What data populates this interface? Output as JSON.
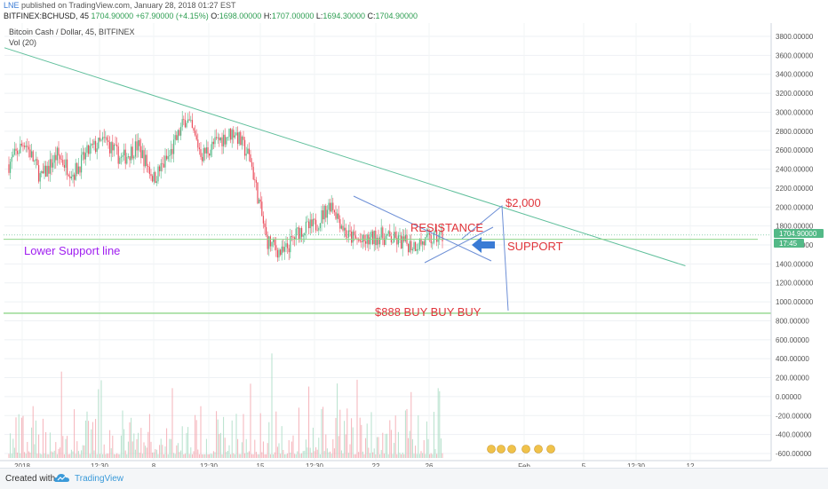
{
  "header": {
    "user": "LNE",
    "published_text": "published on TradingView.com, January 28, 2018 01:27 EST",
    "symbol_line": "BITFINEX:BCHUSD, 45",
    "last": "1704.90000",
    "change": "+67.90000 (+4.15%)",
    "o_label": "O:",
    "o": "1698.00000",
    "h_label": "H:",
    "h": "1707.00000",
    "l_label": "L:",
    "l": "1694.30000",
    "c_label": "C:",
    "c": "1704.90000"
  },
  "legend": {
    "title": "Bitcoin Cash / Dollar, 45, BITFINEX",
    "volume": "Vol (20)"
  },
  "annotations": {
    "resistance": "RESISTANCE",
    "support": "SUPPORT",
    "two_thousand": "$2,000",
    "lower_support": "Lower Support line",
    "buy": "$888 BUY BUY BUY"
  },
  "price_tag": {
    "value": "1704.90000",
    "time": "17:45"
  },
  "footer": {
    "created_with": "Created with",
    "brand": "TradingView"
  },
  "colors": {
    "up": "#53b987",
    "down": "#eb4d5c",
    "trend": "#5fbf9b",
    "wedge": "#6d8fd6",
    "support": "#8fd68a",
    "text_red": "#e0353b",
    "lower_support": "#a020f0",
    "arrow": "#3a7bd5"
  },
  "chart_data": {
    "type": "candlestick",
    "y_axis": {
      "ticks": [
        "3800.00000",
        "3600.00000",
        "3400.00000",
        "3200.00000",
        "3000.00000",
        "2800.00000",
        "2600.00000",
        "2400.00000",
        "2200.00000",
        "2000.00000",
        "1800.00000",
        "1600.00000",
        "1400.00000",
        "1200.00000",
        "1000.00000",
        "800.00000",
        "600.00000",
        "400.00000",
        "200.00000",
        "0.00000",
        "-200.00000",
        "-400.00000",
        "-600.00000"
      ],
      "range": [
        -630,
        3900
      ]
    },
    "x_axis": {
      "ticks": [
        "2018",
        "12:30",
        "8",
        "12:30",
        "15",
        "12:30",
        "22",
        "26",
        "Feb",
        "5",
        "12:30",
        "12"
      ]
    },
    "price_path": [
      [
        "2018-01-01",
        2450
      ],
      [
        "2018-01-02",
        2700
      ],
      [
        "2018-01-03",
        2300
      ],
      [
        "2018-01-04",
        2550
      ],
      [
        "2018-01-05",
        2350
      ],
      [
        "2018-01-06",
        2600
      ],
      [
        "2018-01-07",
        2700
      ],
      [
        "2018-01-08",
        2500
      ],
      [
        "2018-01-09",
        2650
      ],
      [
        "2018-01-10",
        2300
      ],
      [
        "2018-01-11",
        2550
      ],
      [
        "2018-01-12",
        2950
      ],
      [
        "2018-01-13",
        2550
      ],
      [
        "2018-01-14",
        2700
      ],
      [
        "2018-01-15",
        2800
      ],
      [
        "2018-01-16",
        2500
      ],
      [
        "2018-01-17",
        1650
      ],
      [
        "2018-01-18",
        1500
      ],
      [
        "2018-01-19",
        1750
      ],
      [
        "2018-01-20",
        1800
      ],
      [
        "2018-01-21",
        2050
      ],
      [
        "2018-01-22",
        1700
      ],
      [
        "2018-01-23",
        1620
      ],
      [
        "2018-01-24",
        1700
      ],
      [
        "2018-01-25",
        1650
      ],
      [
        "2018-01-26",
        1600
      ],
      [
        "2018-01-27",
        1640
      ],
      [
        "2018-01-28",
        1705
      ]
    ],
    "last_price": 1704.9,
    "support_level": 1660,
    "lower_support_level": 880,
    "trendline": [
      [
        "2018-01-01",
        3680
      ],
      [
        "2018-02-12",
        1380
      ]
    ],
    "targets": {
      "up": 2000,
      "down": 888
    }
  }
}
